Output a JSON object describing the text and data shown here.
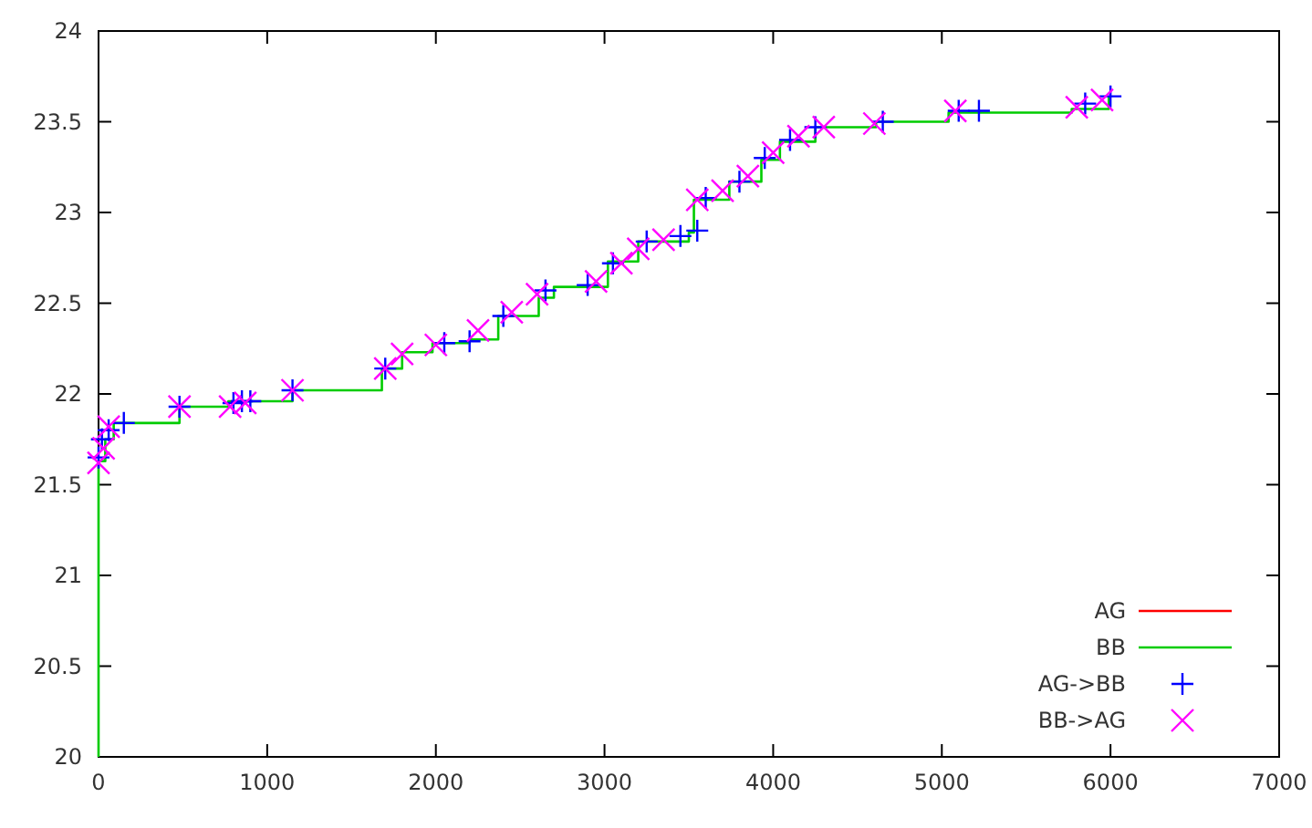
{
  "chart_data": {
    "type": "scatter",
    "xlim": [
      0,
      7000
    ],
    "ylim": [
      20,
      24
    ],
    "xticks": [
      0,
      1000,
      2000,
      3000,
      4000,
      5000,
      6000,
      7000
    ],
    "yticks": [
      20,
      20.5,
      21,
      21.5,
      22,
      22.5,
      23,
      23.5,
      24
    ],
    "grid": false,
    "legend": "bottom right",
    "series": [
      {
        "name": "AG",
        "type": "step",
        "color": "#ff0000"
      },
      {
        "name": "BB",
        "type": "step",
        "color": "#00cc00",
        "x": [
          0,
          0,
          40,
          90,
          480,
          770,
          1150,
          1680,
          1800,
          1980,
          2200,
          2370,
          2610,
          2700,
          3020,
          3200,
          3500,
          3530,
          3740,
          3930,
          4040,
          4250,
          4610,
          5040,
          5770,
          5990
        ],
        "values": [
          20,
          21.63,
          21.75,
          21.84,
          21.93,
          21.96,
          22.02,
          22.14,
          22.23,
          22.28,
          22.3,
          22.43,
          22.53,
          22.59,
          22.73,
          22.84,
          22.89,
          23.07,
          23.17,
          23.29,
          23.39,
          23.47,
          23.5,
          23.55,
          23.57,
          23.64
        ]
      },
      {
        "name": "AG->BB",
        "type": "scatter",
        "marker": "plus",
        "color": "#0000ff",
        "x": [
          0,
          20,
          60,
          150,
          480,
          800,
          850,
          900,
          1150,
          1700,
          2050,
          2200,
          2400,
          2650,
          2900,
          3050,
          3250,
          3450,
          3550,
          3600,
          3800,
          3950,
          4100,
          4250,
          4650,
          5100,
          5220,
          5850,
          6000
        ],
        "values": [
          21.65,
          21.75,
          21.8,
          21.84,
          21.93,
          21.95,
          21.96,
          21.96,
          22.02,
          22.14,
          22.28,
          22.29,
          22.43,
          22.57,
          22.6,
          22.72,
          22.84,
          22.87,
          22.9,
          23.08,
          23.17,
          23.3,
          23.4,
          23.47,
          23.5,
          23.56,
          23.56,
          23.6,
          23.64
        ]
      },
      {
        "name": "BB->AG",
        "type": "scatter",
        "marker": "cross",
        "color": "#ff00ff",
        "x": [
          0,
          30,
          60,
          480,
          780,
          870,
          1150,
          1700,
          1800,
          2000,
          2250,
          2450,
          2600,
          2950,
          3100,
          3200,
          3350,
          3550,
          3700,
          3850,
          4000,
          4150,
          4300,
          4600,
          5080,
          5800,
          5950
        ],
        "values": [
          21.62,
          21.7,
          21.82,
          21.93,
          21.93,
          21.95,
          22.02,
          22.14,
          22.22,
          22.27,
          22.35,
          22.45,
          22.55,
          22.62,
          22.72,
          22.8,
          22.85,
          23.07,
          23.12,
          23.2,
          23.33,
          23.42,
          23.47,
          23.49,
          23.56,
          23.58,
          23.62
        ]
      }
    ]
  }
}
